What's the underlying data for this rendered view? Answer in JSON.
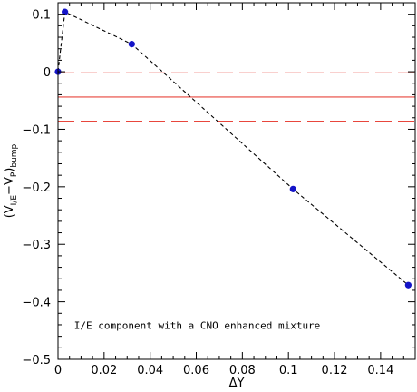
{
  "chart_data": {
    "type": "scatter",
    "xlabel": "ΔY",
    "ylabel": {
      "base": "(V",
      "sub1": "I/E",
      "mid": "−V",
      "sub2": "P",
      "close": ")",
      "sub3": "bump"
    },
    "xlim": [
      0,
      0.155
    ],
    "ylim": [
      -0.5,
      0.12
    ],
    "x_ticks": [
      0,
      0.02,
      0.04,
      0.06,
      0.08,
      0.1,
      0.12,
      0.14
    ],
    "x_tick_labels": [
      "0",
      "0.02",
      "0.04",
      "0.06",
      "0.08",
      "0.1",
      "0.12",
      "0.14"
    ],
    "y_ticks": [
      0.1,
      0,
      -0.1,
      -0.2,
      -0.3,
      -0.4,
      -0.5
    ],
    "y_tick_labels": [
      "0.1",
      "0",
      "−0.1",
      "−0.2",
      "−0.3",
      "−0.4",
      "−0.5"
    ],
    "series": [
      {
        "style": "dashed-line-with-points",
        "color": "#1414c8",
        "line_color": "#000000",
        "points": [
          {
            "x": 0.0,
            "y": 0.0
          },
          {
            "x": 0.003,
            "y": 0.104
          },
          {
            "x": 0.032,
            "y": 0.048
          },
          {
            "x": 0.102,
            "y": -0.204
          },
          {
            "x": 0.152,
            "y": -0.371
          }
        ]
      }
    ],
    "reference_lines": [
      {
        "y": -0.002,
        "style": "long-dash",
        "color": "#e8463c"
      },
      {
        "y": -0.044,
        "style": "solid",
        "color": "#e8463c"
      },
      {
        "y": -0.086,
        "style": "long-dash",
        "color": "#e8463c"
      }
    ],
    "annotation": "I/E component with a CNO enhanced mixture",
    "grid": false,
    "legend": "none"
  }
}
